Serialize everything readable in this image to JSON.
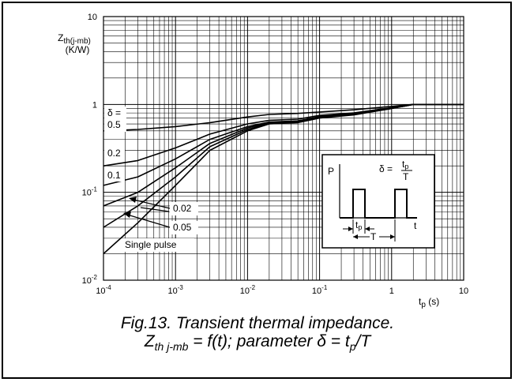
{
  "chart_data": {
    "type": "line",
    "title": "",
    "xlabel": "t_p (s)",
    "ylabel": "Z_th(j-mb) (K/W)",
    "x_scale": "log",
    "y_scale": "log",
    "xlim": [
      0.0001,
      10
    ],
    "ylim": [
      0.01,
      10
    ],
    "x_ticks": [
      "10^-4",
      "10^-3",
      "10^-2",
      "10^-1",
      "1",
      "10"
    ],
    "y_ticks": [
      "10^-2",
      "10^-1",
      "1",
      "10"
    ],
    "grid": true,
    "legend_header": "δ =",
    "series": [
      {
        "name": "0.5",
        "x": [
          0.0001,
          0.0003,
          0.001,
          0.003,
          0.01,
          0.02,
          0.05,
          0.1,
          0.3,
          1,
          2,
          10
        ],
        "y": [
          0.5,
          0.52,
          0.56,
          0.62,
          0.72,
          0.77,
          0.79,
          0.82,
          0.87,
          0.95,
          1.0,
          1.0
        ]
      },
      {
        "name": "0.2",
        "x": [
          0.0001,
          0.0003,
          0.001,
          0.003,
          0.01,
          0.02,
          0.05,
          0.1,
          0.3,
          1,
          2,
          10
        ],
        "y": [
          0.2,
          0.23,
          0.32,
          0.46,
          0.6,
          0.66,
          0.68,
          0.75,
          0.8,
          0.92,
          1.0,
          1.0
        ]
      },
      {
        "name": "0.1",
        "x": [
          0.0001,
          0.0003,
          0.001,
          0.003,
          0.01,
          0.02,
          0.05,
          0.1,
          0.3,
          1,
          2,
          10
        ],
        "y": [
          0.12,
          0.15,
          0.24,
          0.4,
          0.56,
          0.63,
          0.65,
          0.73,
          0.78,
          0.91,
          1.0,
          1.0
        ]
      },
      {
        "name": "0.05",
        "x": [
          0.0001,
          0.0003,
          0.001,
          0.003,
          0.01,
          0.02,
          0.05,
          0.1,
          0.3,
          1,
          2,
          10
        ],
        "y": [
          0.07,
          0.1,
          0.19,
          0.36,
          0.54,
          0.62,
          0.64,
          0.72,
          0.78,
          0.9,
          1.0,
          1.0
        ]
      },
      {
        "name": "0.02",
        "x": [
          0.0001,
          0.0003,
          0.001,
          0.003,
          0.01,
          0.02,
          0.05,
          0.1,
          0.3,
          1,
          2,
          10
        ],
        "y": [
          0.04,
          0.07,
          0.15,
          0.33,
          0.52,
          0.61,
          0.63,
          0.71,
          0.77,
          0.9,
          1.0,
          1.0
        ]
      },
      {
        "name": "Single pulse",
        "x": [
          0.0001,
          0.0003,
          0.001,
          0.003,
          0.01,
          0.02,
          0.05,
          0.1,
          0.3,
          1,
          2,
          10
        ],
        "y": [
          0.02,
          0.045,
          0.12,
          0.3,
          0.5,
          0.6,
          0.62,
          0.7,
          0.76,
          0.9,
          1.0,
          1.0
        ]
      }
    ],
    "annotations": [
      "0.5",
      "0.2",
      "0.1",
      "0.02",
      "0.05",
      "Single pulse"
    ]
  },
  "inset": {
    "p_label": "P",
    "formula_lhs": "δ =",
    "formula_num": "t",
    "formula_num_sub": "p",
    "formula_den": "T",
    "tp_label": "t",
    "tp_sub": "p",
    "t_period": "T",
    "t_axis": "t"
  },
  "caption": {
    "line1": "Fig.13.   Transient thermal impedance.",
    "line2_z": "Z",
    "line2_sub": "th j-mb",
    "line2_mid": " = f(t); parameter δ = t",
    "line2_sub2": "p",
    "line2_end": "/T"
  },
  "axis_text": {
    "ylabel_main": "Z",
    "ylabel_sub": "th(j-mb)",
    "ylabel_unit": "(K/W)",
    "xlabel_main": "t",
    "xlabel_sub": "p",
    "xlabel_unit": " (s)"
  },
  "colors": {
    "ink": "#000000",
    "background": "#ffffff"
  }
}
